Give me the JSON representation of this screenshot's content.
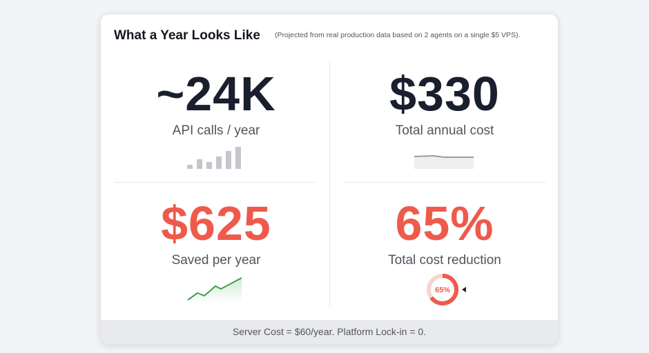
{
  "header": {
    "title": "What a Year Looks Like",
    "subtitle": "(Projected from real production data based on 2 agents on a single $5 VPS)."
  },
  "stats": [
    {
      "value": "~24K",
      "label": "API calls / year"
    },
    {
      "value": "$330",
      "label": "Total annual cost"
    },
    {
      "value": "$625",
      "label": "Saved per year"
    },
    {
      "value": "65%",
      "label": "Total cost reduction",
      "gauge": {
        "value": 65,
        "label": "65%"
      }
    }
  ],
  "footer": "Server Cost = $60/year. Platform Lock-in = 0."
}
